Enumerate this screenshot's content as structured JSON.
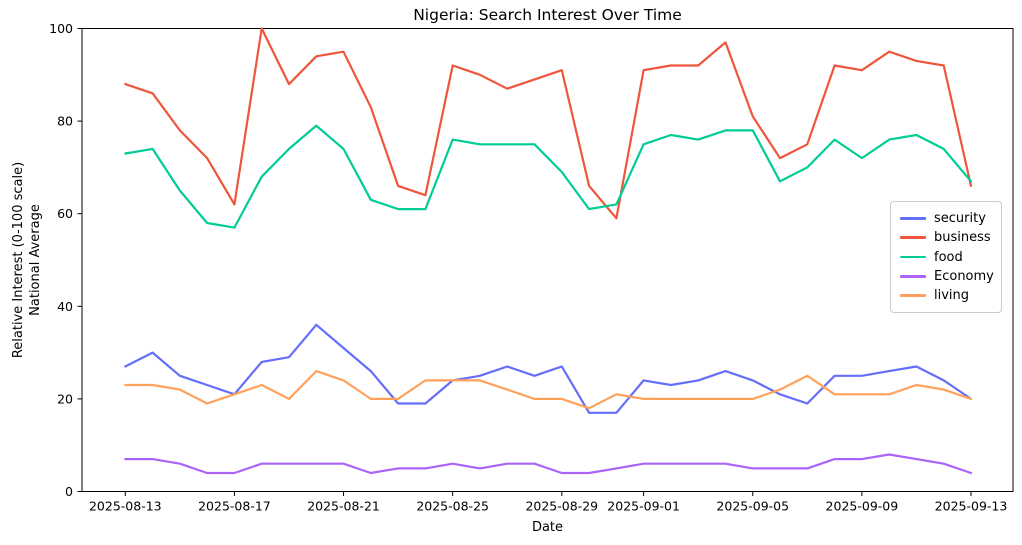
{
  "title": "Nigeria: Search Interest Over Time",
  "xlabel": "Date",
  "ylabel_line1": "Relative Interest (0-100 scale)",
  "ylabel_line2": "National Average",
  "legend": {
    "entries": [
      "security",
      "business",
      "food",
      "Economy",
      "living"
    ]
  },
  "chart_data": {
    "type": "line",
    "title": "Nigeria: Search Interest Over Time",
    "xlabel": "Date",
    "ylabel": "Relative Interest (0-100 scale)\nNational Average",
    "ylim": [
      0,
      100
    ],
    "yticks": [
      0,
      20,
      40,
      60,
      80,
      100
    ],
    "grid": false,
    "legend_position": "center-right",
    "x": [
      "2025-08-13",
      "2025-08-14",
      "2025-08-15",
      "2025-08-16",
      "2025-08-17",
      "2025-08-18",
      "2025-08-19",
      "2025-08-20",
      "2025-08-21",
      "2025-08-22",
      "2025-08-23",
      "2025-08-24",
      "2025-08-25",
      "2025-08-26",
      "2025-08-27",
      "2025-08-28",
      "2025-08-29",
      "2025-08-30",
      "2025-08-31",
      "2025-09-01",
      "2025-09-02",
      "2025-09-03",
      "2025-09-04",
      "2025-09-05",
      "2025-09-06",
      "2025-09-07",
      "2025-09-08",
      "2025-09-09",
      "2025-09-10",
      "2025-09-11",
      "2025-09-12",
      "2025-09-13"
    ],
    "xtick_indices": [
      0,
      4,
      8,
      12,
      16,
      19,
      23,
      27,
      31
    ],
    "xtick_labels": [
      "2025-08-13",
      "2025-08-17",
      "2025-08-21",
      "2025-08-25",
      "2025-08-29",
      "2025-09-01",
      "2025-09-05",
      "2025-09-09",
      "2025-09-13"
    ],
    "series": [
      {
        "name": "security",
        "color": "#636efa",
        "values": [
          27,
          30,
          25,
          23,
          21,
          28,
          29,
          36,
          31,
          26,
          19,
          19,
          24,
          25,
          27,
          25,
          27,
          17,
          17,
          24,
          23,
          24,
          26,
          24,
          21,
          19,
          25,
          25,
          26,
          27,
          24,
          20
        ]
      },
      {
        "name": "business",
        "color": "#ef553b",
        "values": [
          88,
          86,
          78,
          72,
          62,
          100,
          88,
          94,
          95,
          83,
          66,
          64,
          92,
          90,
          87,
          89,
          91,
          66,
          59,
          91,
          92,
          92,
          97,
          81,
          72,
          75,
          92,
          91,
          95,
          93,
          92,
          66
        ]
      },
      {
        "name": "food",
        "color": "#00cc96",
        "values": [
          73,
          74,
          65,
          58,
          57,
          68,
          74,
          79,
          74,
          63,
          61,
          61,
          76,
          75,
          75,
          75,
          69,
          61,
          62,
          75,
          77,
          76,
          78,
          78,
          67,
          70,
          76,
          72,
          76,
          77,
          74,
          67
        ]
      },
      {
        "name": "Economy",
        "color": "#ab63fa",
        "values": [
          7,
          7,
          6,
          4,
          4,
          6,
          6,
          6,
          6,
          4,
          5,
          5,
          6,
          5,
          6,
          6,
          4,
          4,
          5,
          6,
          6,
          6,
          6,
          5,
          5,
          5,
          7,
          7,
          8,
          7,
          6,
          4
        ]
      },
      {
        "name": "living",
        "color": "#ffa15a",
        "values": [
          23,
          23,
          22,
          19,
          21,
          23,
          20,
          26,
          24,
          20,
          20,
          24,
          24,
          24,
          22,
          20,
          20,
          18,
          21,
          20,
          20,
          20,
          20,
          20,
          22,
          25,
          21,
          21,
          21,
          23,
          22,
          20
        ]
      }
    ]
  }
}
